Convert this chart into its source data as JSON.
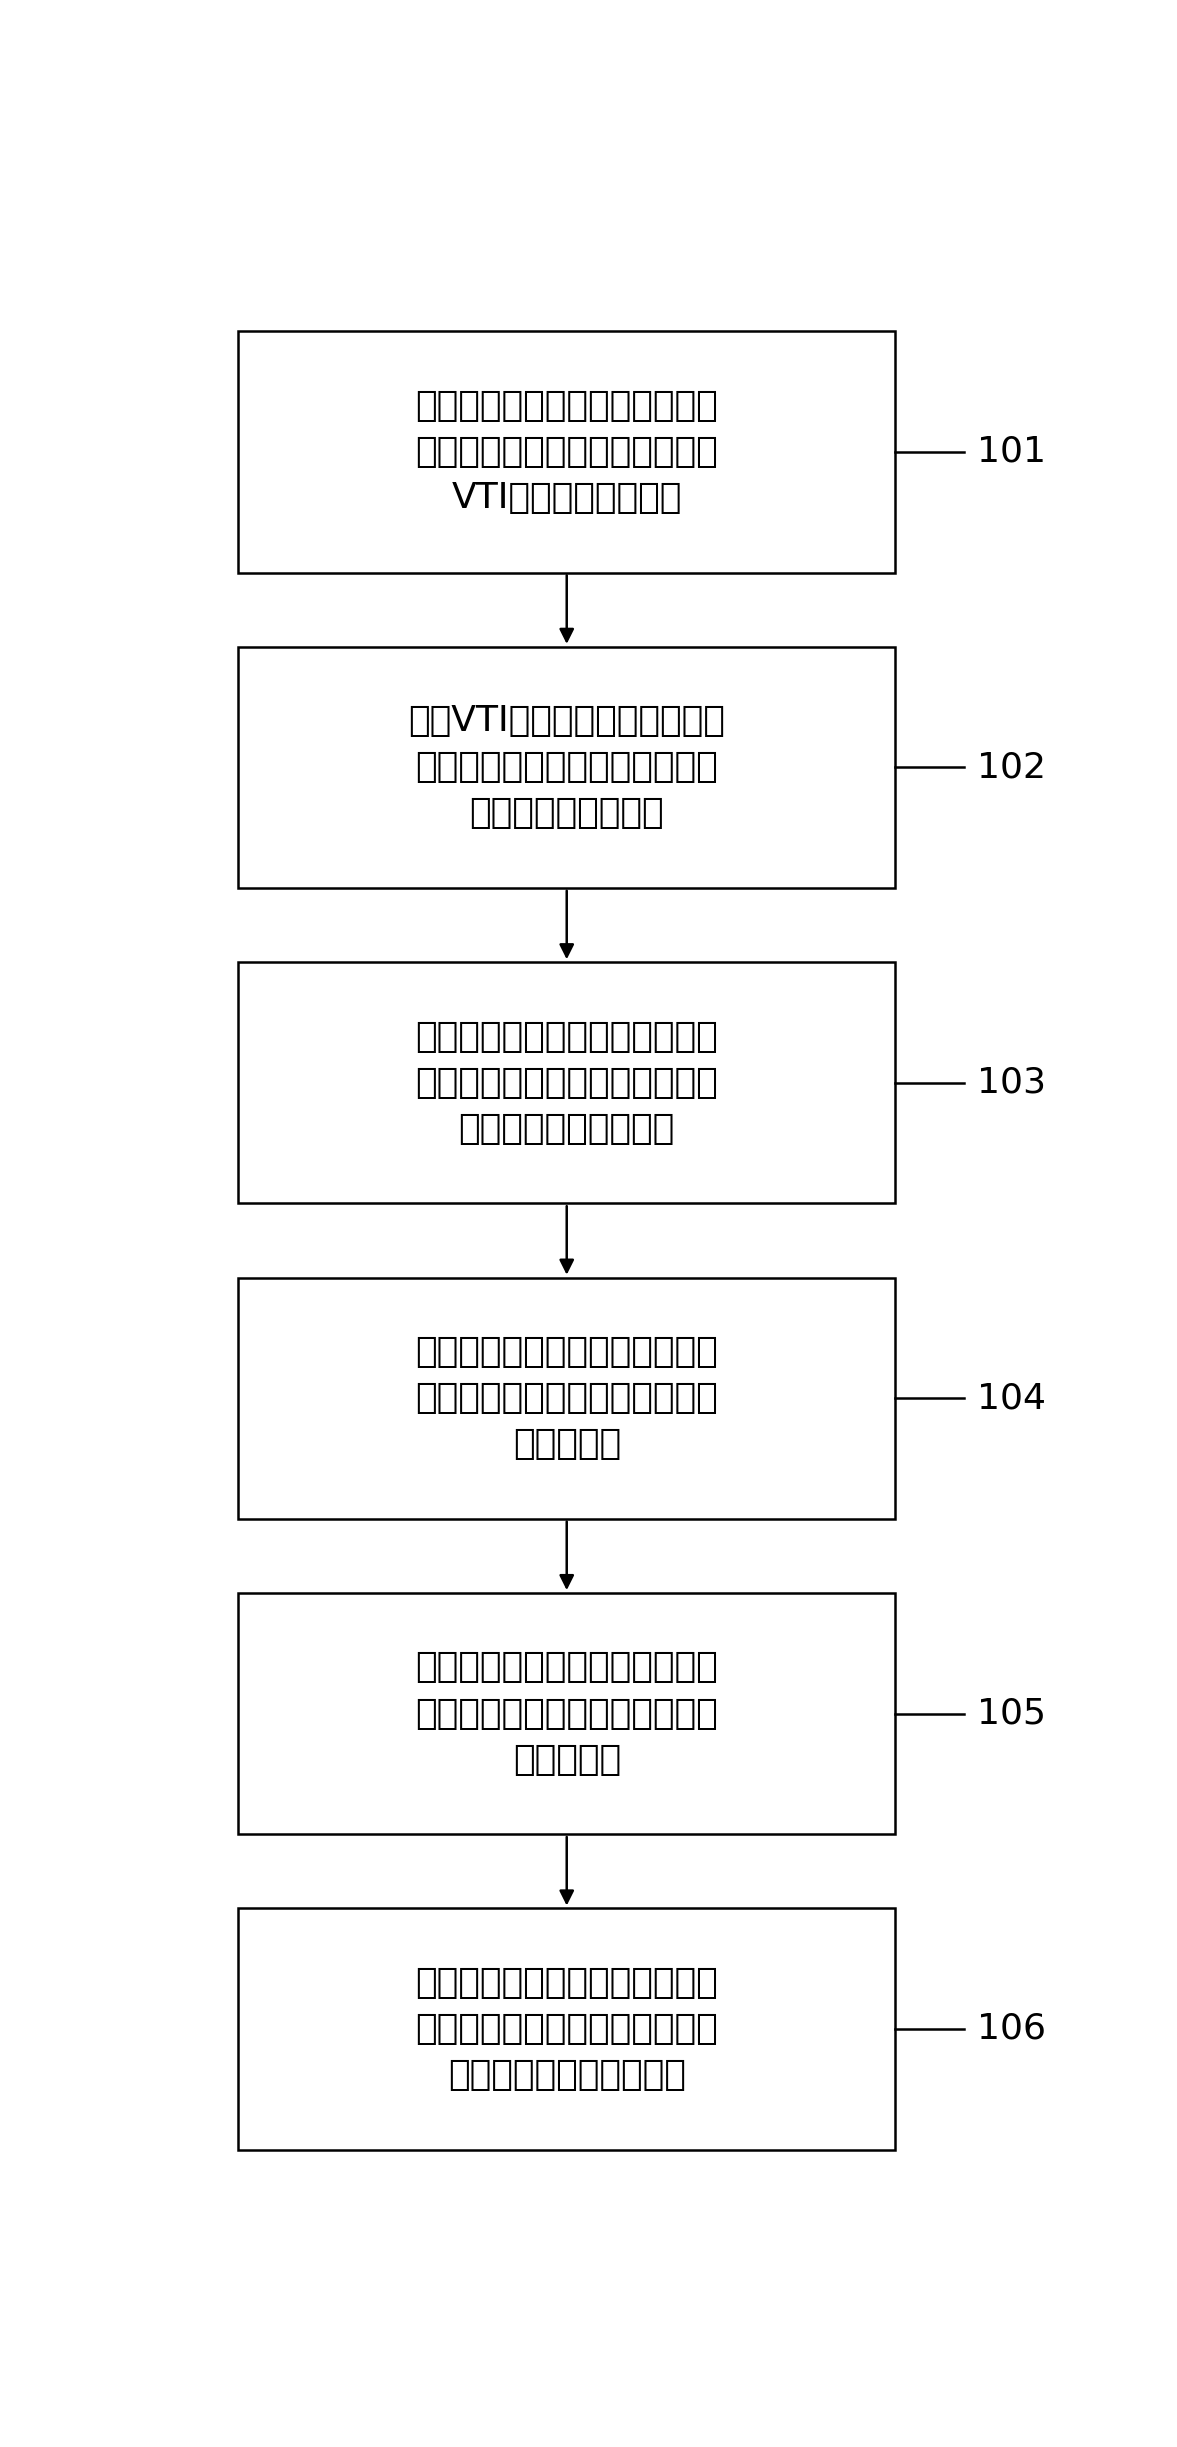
{
  "boxes": [
    {
      "id": 1,
      "label": "根据纵波速度、快横波速度、慢\n横波速度和各向异性参数，计算\nVTI介质刚度矩阵系数",
      "step": "101"
    },
    {
      "id": 2,
      "label": "根据VTI介质刚度矩阵系数与角\n度，计算全角度纵波速度、快横\n波速度、慢横波速度",
      "step": "102"
    },
    {
      "id": 3,
      "label": "根据全角度纵波速度、快横波速\n度、慢横波速度，计算全角度泊\n松比与全角度杨氏模量",
      "step": "103"
    },
    {
      "id": 4,
      "label": "根据全角度泊松比与全角度杨氏\n模量，计算全角度全波场各向异\n性脆性指数",
      "step": "104"
    },
    {
      "id": 5,
      "label": "根据全角度全波场各向异性脆性\n指数，计算全角度全波场裂缝破\n裂调节因子",
      "step": "105"
    },
    {
      "id": 6,
      "label": "根据全角度全波场裂缝破裂调节\n因子，计算全角度全波场裂缝破\n裂调节因子后的脆性指数",
      "step": "106"
    }
  ],
  "box_color": "#ffffff",
  "box_edge_color": "#000000",
  "arrow_color": "#000000",
  "text_color": "#000000",
  "background_color": "#ffffff",
  "fig_width": 11.77,
  "fig_height": 24.47,
  "font_size": 26,
  "step_font_size": 26
}
